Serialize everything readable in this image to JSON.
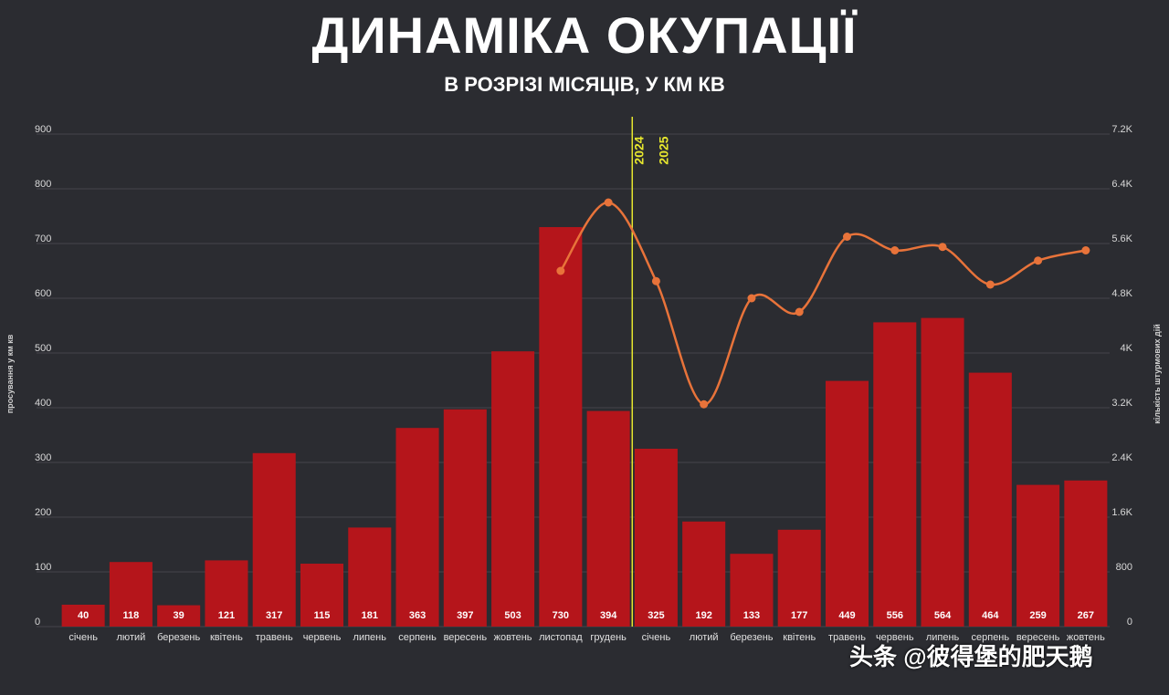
{
  "header": {
    "title": "ДИНАМІКА ОКУПАЦІЇ",
    "subtitle": "В РОЗРІЗІ МІСЯЦІВ, У КМ КВ"
  },
  "watermark": "头条 @彼得堡的肥天鹅",
  "colors": {
    "background": "#2b2c31",
    "bar": "#b5151b",
    "line": "#e8733a",
    "divider": "#e6e62e",
    "grid": "#44454b"
  },
  "chart_data": {
    "type": "bar",
    "xlabel": "",
    "ylabel": "просування у км кв",
    "y2label": "кількість штурмових дій",
    "ylim": [
      0,
      900
    ],
    "y2lim": [
      0,
      7200
    ],
    "grid": true,
    "y_ticks": [
      "0",
      "100",
      "200",
      "300",
      "400",
      "500",
      "600",
      "700",
      "800",
      "900"
    ],
    "y2_ticks": [
      "0",
      "800",
      "1.6K",
      "2.4K",
      "3.2K",
      "4K",
      "4.8K",
      "5.6K",
      "6.4K",
      "7.2K"
    ],
    "categories": [
      "січень",
      "лютий",
      "березень",
      "квітень",
      "травень",
      "червень",
      "липень",
      "серпень",
      "вересень",
      "жовтень",
      "листопад",
      "грудень",
      "січень",
      "лютий",
      "березень",
      "квітень",
      "травень",
      "червень",
      "липень",
      "серпень",
      "вересень",
      "жовтень"
    ],
    "values": [
      40,
      118,
      39,
      121,
      317,
      115,
      181,
      363,
      397,
      503,
      730,
      394,
      325,
      192,
      133,
      177,
      449,
      556,
      564,
      464,
      259,
      267
    ],
    "line_series": {
      "start_index": 10,
      "values": [
        5200,
        6200,
        5050,
        3250,
        4800,
        4600,
        5700,
        5500,
        5550,
        5000,
        5350,
        5500
      ]
    },
    "divider": {
      "after_index": 11,
      "label_left": "2024",
      "label_right": "2025"
    }
  }
}
